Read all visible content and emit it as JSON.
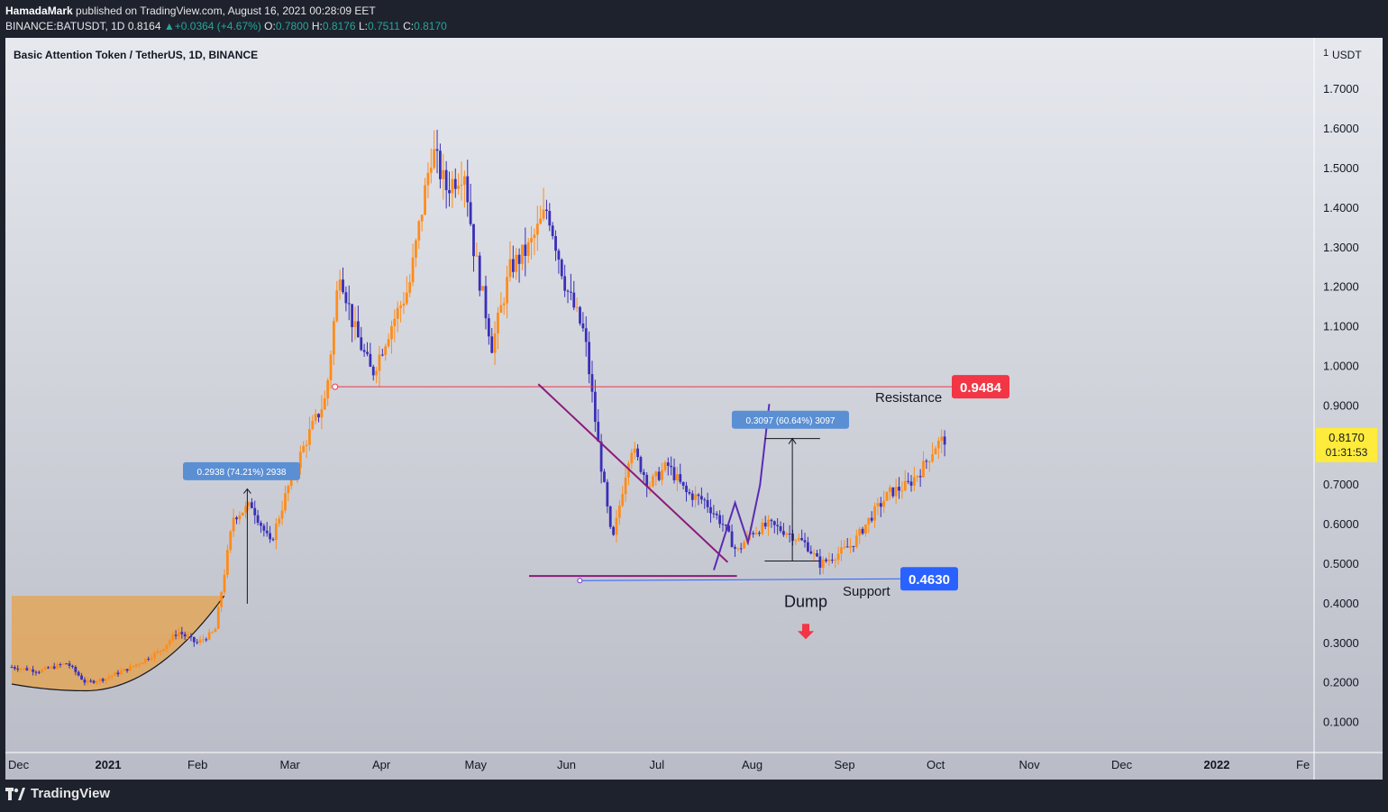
{
  "header": {
    "author": "HamadaMark",
    "published": "published on TradingView.com, August 16, 2021 00:28:09 EET",
    "symbol": "BINANCE:BATUSDT, 1D",
    "last": "0.8164",
    "change": "+0.0364 (+4.67%)",
    "o_label": "O:",
    "o_value": "0.7800",
    "h_label": "H:",
    "h_value": "0.8176",
    "l_label": "L:",
    "l_value": "0.7511",
    "c_label": "C:",
    "c_value": "0.8170"
  },
  "footer": {
    "brand": "TradingView",
    "logo_icon": "tradingview-logo-icon"
  },
  "chart_data": {
    "type": "candlestick",
    "title": "Basic Attention Token / TetherUS, 1D, BINANCE",
    "currency": "USDT",
    "scale_mark": "1",
    "ylim": [
      0,
      1.8
    ],
    "y_ticks": [
      "0.1000",
      "0.2000",
      "0.3000",
      "0.4000",
      "0.5000",
      "0.6000",
      "0.7000",
      "0.9000",
      "1.0000",
      "1.1000",
      "1.2000",
      "1.3000",
      "1.4000",
      "1.5000",
      "1.6000",
      "1.7000"
    ],
    "x_labels": [
      "Dec",
      "2021",
      "Feb",
      "Mar",
      "Apr",
      "May",
      "Jun",
      "Jul",
      "Aug",
      "Sep",
      "Oct",
      "Nov",
      "Dec",
      "2022",
      "Fe"
    ],
    "x_bold": [
      "2021",
      "2022"
    ],
    "price_path": [
      {
        "month": 0.0,
        "price": 0.24
      },
      {
        "month": 0.3,
        "price": 0.23
      },
      {
        "month": 0.6,
        "price": 0.25
      },
      {
        "month": 0.8,
        "price": 0.2
      },
      {
        "month": 1.0,
        "price": 0.21
      },
      {
        "month": 1.3,
        "price": 0.24
      },
      {
        "month": 1.6,
        "price": 0.28
      },
      {
        "month": 1.8,
        "price": 0.33
      },
      {
        "month": 2.0,
        "price": 0.3
      },
      {
        "month": 2.2,
        "price": 0.33
      },
      {
        "month": 2.4,
        "price": 0.62
      },
      {
        "month": 2.6,
        "price": 0.65
      },
      {
        "month": 2.8,
        "price": 0.55
      },
      {
        "month": 3.0,
        "price": 0.7
      },
      {
        "month": 3.2,
        "price": 0.82
      },
      {
        "month": 3.4,
        "price": 0.92
      },
      {
        "month": 3.55,
        "price": 1.25
      },
      {
        "month": 3.7,
        "price": 1.1
      },
      {
        "month": 3.9,
        "price": 0.98
      },
      {
        "month": 4.1,
        "price": 1.1
      },
      {
        "month": 4.3,
        "price": 1.2
      },
      {
        "month": 4.55,
        "price": 1.55
      },
      {
        "month": 4.7,
        "price": 1.45
      },
      {
        "month": 4.9,
        "price": 1.5
      },
      {
        "month": 5.0,
        "price": 1.3
      },
      {
        "month": 5.2,
        "price": 1.05
      },
      {
        "month": 5.4,
        "price": 1.25
      },
      {
        "month": 5.6,
        "price": 1.3
      },
      {
        "month": 5.8,
        "price": 1.4
      },
      {
        "month": 6.0,
        "price": 1.2
      },
      {
        "month": 6.2,
        "price": 1.08
      },
      {
        "month": 6.35,
        "price": 0.8
      },
      {
        "month": 6.5,
        "price": 0.55
      },
      {
        "month": 6.7,
        "price": 0.8
      },
      {
        "month": 6.9,
        "price": 0.7
      },
      {
        "month": 7.1,
        "price": 0.75
      },
      {
        "month": 7.3,
        "price": 0.68
      },
      {
        "month": 7.5,
        "price": 0.66
      },
      {
        "month": 7.7,
        "price": 0.6
      },
      {
        "month": 7.85,
        "price": 0.53
      },
      {
        "month": 8.0,
        "price": 0.58
      },
      {
        "month": 8.2,
        "price": 0.6
      },
      {
        "month": 8.4,
        "price": 0.58
      },
      {
        "month": 8.6,
        "price": 0.55
      },
      {
        "month": 8.75,
        "price": 0.5
      },
      {
        "month": 8.9,
        "price": 0.52
      },
      {
        "month": 9.1,
        "price": 0.55
      },
      {
        "month": 9.3,
        "price": 0.62
      },
      {
        "month": 9.5,
        "price": 0.68
      },
      {
        "month": 9.7,
        "price": 0.7
      },
      {
        "month": 9.85,
        "price": 0.74
      },
      {
        "month": 10.0,
        "price": 0.8
      },
      {
        "month": 10.1,
        "price": 0.817
      }
    ],
    "lines": [
      {
        "name": "Resistance",
        "value": 0.9484,
        "label": "0.9484",
        "text": "Resistance",
        "color": "#f23645"
      },
      {
        "name": "Support",
        "value": 0.463,
        "label": "0.4630",
        "text": "Support",
        "color": "#2962ff"
      }
    ],
    "current_price": {
      "value": "0.8170",
      "countdown": "01:31:53",
      "color": "#ffeb3b"
    },
    "measure_1": {
      "text": "0.2938 (74.21%) 2938"
    },
    "measure_2": {
      "text": "0.3097 (60.64%) 3097"
    },
    "annotation_dump": "Dump",
    "colors": {
      "up": "#ff8c1a",
      "down": "#3a2fb8",
      "bg_top": "#e6e8ee",
      "bg_bottom": "#b9bcc6"
    }
  }
}
